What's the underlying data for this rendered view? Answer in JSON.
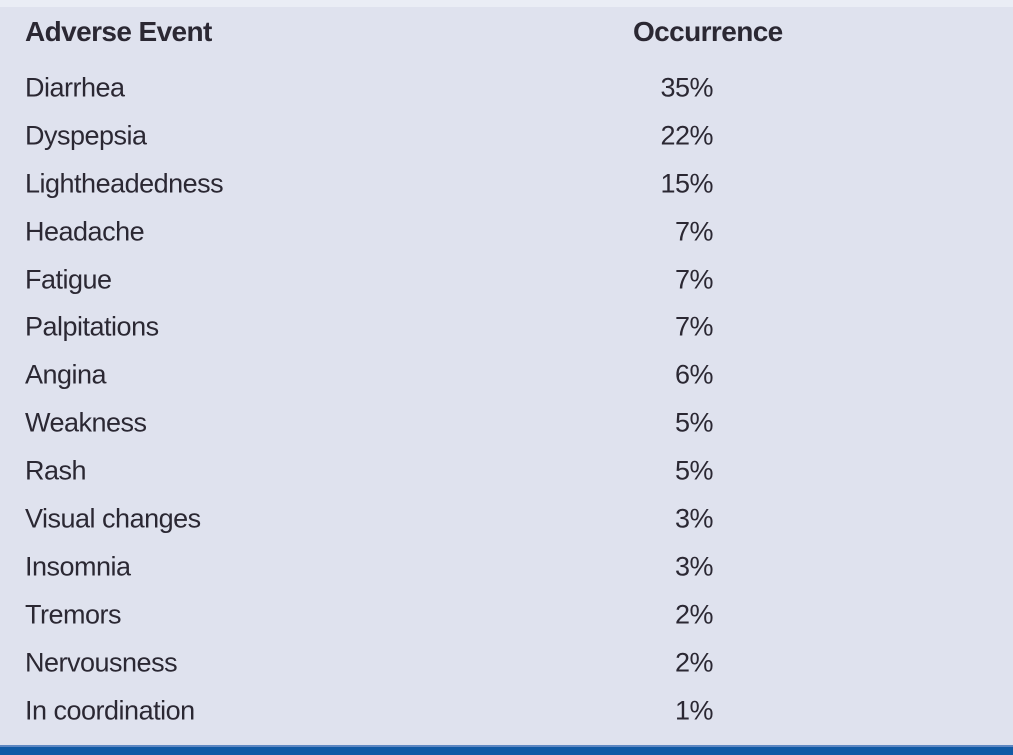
{
  "page": {
    "background_color": "#dfe2ee",
    "text_color": "#2b2833",
    "bottom_bar_color": "#115aa5",
    "bottom_bar_highlight_color": "#5e87c2"
  },
  "table": {
    "columns": {
      "event": "Adverse Event",
      "occurrence": "Occurrence"
    },
    "rows": [
      {
        "event": "Diarrhea",
        "occurrence": "35%"
      },
      {
        "event": "Dyspepsia",
        "occurrence": "22%"
      },
      {
        "event": "Lightheadedness",
        "occurrence": "15%"
      },
      {
        "event": "Headache",
        "occurrence": "7%"
      },
      {
        "event": "Fatigue",
        "occurrence": "7%"
      },
      {
        "event": "Palpitations",
        "occurrence": "7%"
      },
      {
        "event": "Angina",
        "occurrence": "6%"
      },
      {
        "event": "Weakness",
        "occurrence": "5%"
      },
      {
        "event": "Rash",
        "occurrence": "5%"
      },
      {
        "event": "Visual changes",
        "occurrence": "3%"
      },
      {
        "event": "Insomnia",
        "occurrence": "3%"
      },
      {
        "event": "Tremors",
        "occurrence": "2%"
      },
      {
        "event": "Nervousness",
        "occurrence": "2%"
      },
      {
        "event": "In coordination",
        "occurrence": "1%"
      }
    ]
  },
  "chart_data": {
    "type": "table",
    "title": "",
    "columns": [
      "Adverse Event",
      "Occurrence"
    ],
    "categories": [
      "Diarrhea",
      "Dyspepsia",
      "Lightheadedness",
      "Headache",
      "Fatigue",
      "Palpitations",
      "Angina",
      "Weakness",
      "Rash",
      "Visual changes",
      "Insomnia",
      "Tremors",
      "Nervousness",
      "In coordination"
    ],
    "values_percent": [
      35,
      22,
      15,
      7,
      7,
      7,
      6,
      5,
      5,
      3,
      3,
      2,
      2,
      1
    ]
  }
}
